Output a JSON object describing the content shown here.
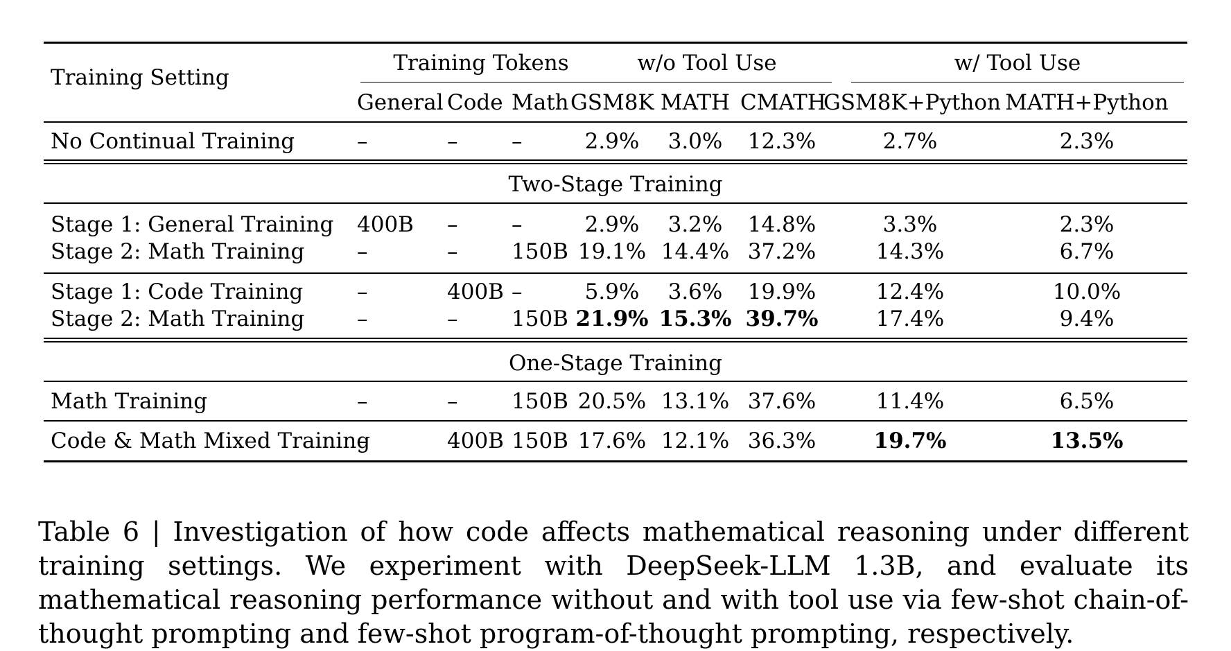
{
  "table": {
    "header": {
      "row_label": "Training Setting",
      "groups": [
        "Training Tokens",
        "w/o Tool Use",
        "w/ Tool Use"
      ],
      "columns": [
        "General",
        "Code",
        "Math",
        "GSM8K",
        "MATH",
        "CMATH",
        "GSM8K+Python",
        "MATH+Python"
      ]
    },
    "rows": [
      {
        "label": "No Continual Training",
        "cells": [
          "–",
          "–",
          "–",
          "2.9%",
          "3.0%",
          "12.3%",
          "2.7%",
          "2.3%"
        ]
      },
      {
        "label": "Stage 1: General Training",
        "cells": [
          "400B",
          "–",
          "–",
          "2.9%",
          "3.2%",
          "14.8%",
          "3.3%",
          "2.3%"
        ]
      },
      {
        "label": "Stage 2: Math Training",
        "cells": [
          "–",
          "–",
          "150B",
          "19.1%",
          "14.4%",
          "37.2%",
          "14.3%",
          "6.7%"
        ]
      },
      {
        "label": "Stage 1: Code Training",
        "cells": [
          "–",
          "400B",
          "–",
          "5.9%",
          "3.6%",
          "19.9%",
          "12.4%",
          "10.0%"
        ]
      },
      {
        "label": "Stage 2: Math Training",
        "cells": [
          "–",
          "–",
          "150B",
          "21.9%",
          "15.3%",
          "39.7%",
          "17.4%",
          "9.4%"
        ]
      },
      {
        "label": "Math Training",
        "cells": [
          "–",
          "–",
          "150B",
          "20.5%",
          "13.1%",
          "37.6%",
          "11.4%",
          "6.5%"
        ]
      },
      {
        "label": "Code & Math Mixed Training",
        "cells": [
          "–",
          "400B",
          "150B",
          "17.6%",
          "12.1%",
          "36.3%",
          "19.7%",
          "13.5%"
        ]
      }
    ],
    "sections": [
      "Two-Stage Training",
      "One-Stage Training"
    ]
  },
  "caption": "Table 6 | Investigation of how code affects mathematical reasoning under different training settings.  We experiment with DeepSeek-LLM 1.3B, and evaluate its mathematical reasoning performance without and with tool use via few-shot chain-of-thought prompting and few-shot program-of-thought prompting, respectively."
}
